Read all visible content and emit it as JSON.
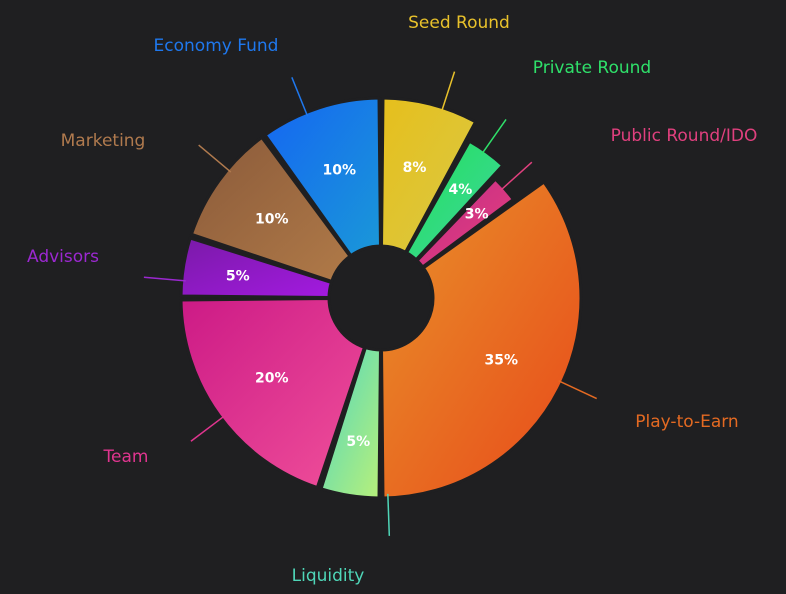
{
  "chart_data": {
    "type": "pie",
    "style": "donut-exploded",
    "title": "",
    "slices": [
      {
        "label": "Seed Round",
        "value": 8,
        "display": "8%",
        "color": "#e6bf1c",
        "color2": "#d9c945",
        "label_color": "#e8c12b"
      },
      {
        "label": "Private Round",
        "value": 4,
        "display": "4%",
        "color": "#22e05a",
        "color2": "#3fd6a0",
        "label_color": "#2fe06a"
      },
      {
        "label": "Public Round/IDO",
        "value": 3,
        "display": "3%",
        "color": "#c02c8a",
        "color2": "#e8407a",
        "label_color": "#e0407e"
      },
      {
        "label": "Play-to-Earn",
        "value": 35,
        "display": "35%",
        "color": "#e8922a",
        "color2": "#e8491a",
        "label_color": "#e46a22"
      },
      {
        "label": "Liquidity",
        "value": 5,
        "display": "5%",
        "color": "#4fd6c0",
        "color2": "#b8f07a",
        "label_color": "#4fd6b8"
      },
      {
        "label": "Team",
        "value": 20,
        "display": "20%",
        "color": "#cc1a86",
        "color2": "#f0509a",
        "label_color": "#e0358f"
      },
      {
        "label": "Advisors",
        "value": 5,
        "display": "5%",
        "color": "#7a1aa8",
        "color2": "#a31ae0",
        "label_color": "#9b28d0"
      },
      {
        "label": "Marketing",
        "value": 10,
        "display": "10%",
        "color": "#8a5a3a",
        "color2": "#b07a48",
        "label_color": "#b07a4e"
      },
      {
        "label": "Economy Fund",
        "value": 10,
        "display": "10%",
        "color": "#1566f2",
        "color2": "#1a98d8",
        "label_color": "#1f78ee"
      }
    ]
  }
}
